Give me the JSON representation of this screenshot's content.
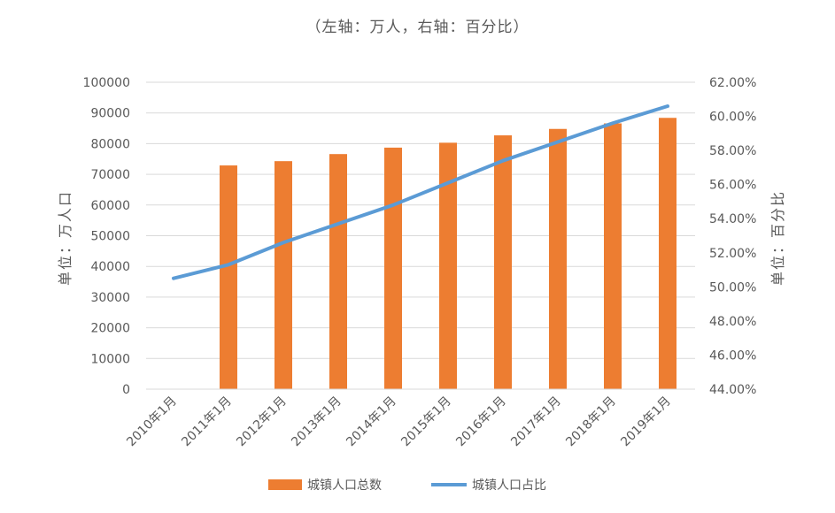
{
  "chart_data": {
    "type": "bar",
    "title": "（左轴：万人，右轴：百分比）",
    "categories": [
      "2010年1月",
      "2011年1月",
      "2012年1月",
      "2013年1月",
      "2014年1月",
      "2015年1月",
      "2016年1月",
      "2017年1月",
      "2018年1月",
      "2019年1月"
    ],
    "ylabel": "单位：万人口",
    "y2label": "单位：百分比",
    "ylim": [
      0,
      100000
    ],
    "y2lim": [
      44,
      62
    ],
    "y_ticks": [
      "0",
      "10000",
      "20000",
      "30000",
      "40000",
      "50000",
      "60000",
      "70000",
      "80000",
      "90000",
      "100000"
    ],
    "y2_ticks": [
      "44.00%",
      "46.00%",
      "48.00%",
      "50.00%",
      "52.00%",
      "54.00%",
      "56.00%",
      "58.00%",
      "60.00%",
      "62.00%"
    ],
    "grid": true,
    "legend_position": "bottom",
    "series": [
      {
        "name": "城镇人口总数",
        "type": "bar",
        "axis": "left",
        "color": "#ED7D31",
        "values": [
          null,
          72900,
          74300,
          76600,
          78700,
          80300,
          82700,
          84800,
          86600,
          88400
        ]
      },
      {
        "name": "城镇人口占比",
        "type": "line",
        "axis": "right",
        "color": "#5B9BD5",
        "values": [
          50.5,
          51.3,
          52.6,
          53.7,
          54.8,
          56.1,
          57.4,
          58.5,
          59.6,
          60.6
        ]
      }
    ]
  }
}
